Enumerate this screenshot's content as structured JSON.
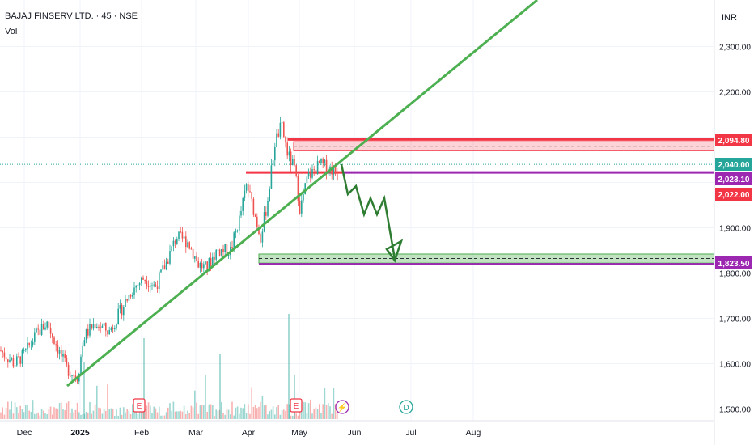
{
  "header": {
    "symbol": "BAJAJ FINSERV LTD. · 45 · NSE",
    "volume_label": "Vol",
    "currency": "INR"
  },
  "colors": {
    "up": "#26a69a",
    "down": "#ef5350",
    "resistance": "#f23645",
    "support_zone": "#4caf50",
    "trendline": "#4caf50",
    "purple": "#9c27b0",
    "grid": "#f0f3fa"
  },
  "chart_data": {
    "type": "candlestick",
    "y_axis": {
      "ticks": [
        "2,300.00",
        "2,200.00",
        "1,900.00",
        "1,800.00",
        "1,700.00",
        "1,600.00",
        "1,500.00"
      ],
      "tick_values": [
        2300,
        2200,
        1900,
        1800,
        1700,
        1600,
        1500
      ],
      "range": [
        1490,
        2390
      ]
    },
    "x_axis": {
      "labels": [
        "Dec",
        "2025",
        "Feb",
        "Mar",
        "Apr",
        "May",
        "Jun",
        "Jul",
        "Aug"
      ]
    },
    "price_tags": [
      {
        "label": "2,094.80",
        "value": 2094.8,
        "color": "#f23645"
      },
      {
        "label": "2,040.00",
        "value": 2040.0,
        "color": "#26a69a"
      },
      {
        "label": "2,023.10",
        "value": 2023.1,
        "color": "#9c27b0"
      },
      {
        "label": "2,022.00",
        "value": 2022.0,
        "color": "#f23645"
      },
      {
        "label": "1,823.50",
        "value": 1823.5,
        "color": "#9c27b0"
      }
    ],
    "markers": [
      {
        "label": "E",
        "type": "earnings"
      },
      {
        "label": "E",
        "type": "earnings"
      },
      {
        "label": "⚡",
        "type": "split"
      },
      {
        "label": "D",
        "type": "dividend"
      }
    ],
    "resistance_zone": [
      2070,
      2090
    ],
    "support_zone": [
      1822,
      1842
    ],
    "resistance_line": 2094.8,
    "mid_line": 2022.0,
    "current_price": 2040.0
  }
}
